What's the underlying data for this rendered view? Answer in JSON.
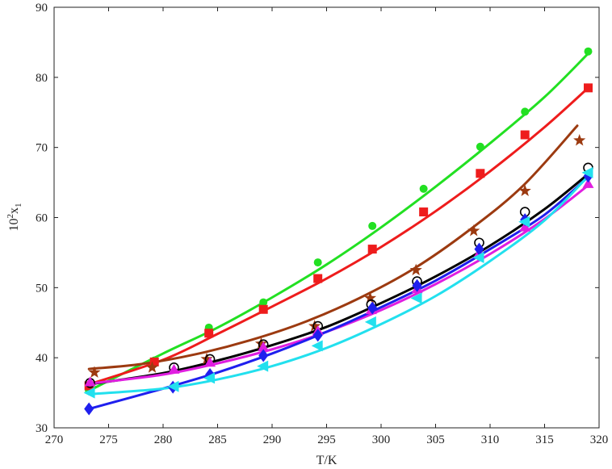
{
  "chart_data": {
    "type": "scatter",
    "xlabel": "T/K",
    "ylabel": {
      "base": "10",
      "sup": "2",
      "main": "x",
      "sub": "1"
    },
    "xlim": [
      270,
      320
    ],
    "ylim": [
      30,
      90
    ],
    "xticks": [
      270,
      275,
      280,
      285,
      290,
      295,
      300,
      305,
      310,
      315,
      320
    ],
    "yticks": [
      30,
      40,
      50,
      60,
      70,
      80,
      90
    ],
    "grid": false,
    "series": [
      {
        "color": "#22e022",
        "marker": "circle",
        "x": [
          273.2,
          279.2,
          284.2,
          289.2,
          294.2,
          299.2,
          303.9,
          309.1,
          313.2,
          319.0
        ],
        "y": [
          35.3,
          39.6,
          44.3,
          47.9,
          53.6,
          58.8,
          64.1,
          70.1,
          75.1,
          83.7
        ],
        "fit_x": [
          273.2,
          280,
          285,
          290,
          295,
          300,
          305,
          310,
          315,
          319.0
        ],
        "fit_y": [
          35.3,
          40.6,
          44.3,
          48.6,
          53.3,
          58.6,
          64.4,
          70.6,
          77.2,
          83.4
        ]
      },
      {
        "color": "#ee1c1c",
        "marker": "square",
        "x": [
          273.2,
          279.2,
          284.2,
          289.2,
          294.2,
          299.2,
          303.9,
          309.1,
          313.2,
          319.0
        ],
        "y": [
          36.0,
          39.4,
          43.5,
          46.9,
          51.3,
          55.5,
          60.8,
          66.3,
          71.8,
          78.5
        ],
        "fit_x": [
          273.2,
          280,
          285,
          290,
          295,
          300,
          305,
          310,
          315,
          319.0
        ],
        "fit_y": [
          36.2,
          39.7,
          43.4,
          47.3,
          51.3,
          55.8,
          60.9,
          66.6,
          72.9,
          78.5
        ]
      },
      {
        "color": "#9c3a10",
        "marker": "star",
        "x": [
          273.7,
          279.0,
          284.0,
          289.0,
          293.9,
          299.0,
          303.2,
          308.5,
          313.2,
          318.2
        ],
        "y": [
          37.9,
          38.6,
          39.8,
          42.0,
          44.5,
          48.5,
          52.5,
          58.1,
          63.8,
          71.0
        ],
        "fit_x": [
          273.2,
          278,
          283,
          288,
          293,
          298,
          303,
          308,
          313,
          318.0
        ],
        "fit_y": [
          38.4,
          39.1,
          40.5,
          42.5,
          45.1,
          48.5,
          52.7,
          58.1,
          64.5,
          73.1
        ]
      },
      {
        "color": "#000000",
        "marker": "circle-open",
        "x": [
          273.3,
          281.0,
          284.3,
          289.2,
          294.2,
          299.1,
          303.3,
          309.0,
          313.2,
          319.0
        ],
        "y": [
          36.4,
          38.6,
          39.8,
          41.9,
          44.5,
          47.6,
          50.9,
          56.4,
          60.8,
          67.1
        ],
        "fit_x": [
          273.2,
          280,
          285,
          290,
          295,
          300,
          305,
          310,
          315,
          319.0
        ],
        "fit_y": [
          36.2,
          37.8,
          39.6,
          41.8,
          44.4,
          47.8,
          51.6,
          56.0,
          61.2,
          66.2
        ]
      },
      {
        "color": "#e01ee0",
        "marker": "triangle-up",
        "x": [
          273.3,
          281.0,
          284.3,
          289.2,
          294.2,
          299.1,
          303.3,
          309.0,
          313.2,
          319.0
        ],
        "y": [
          36.5,
          38.3,
          39.3,
          41.5,
          43.8,
          46.8,
          49.8,
          54.9,
          58.6,
          64.8
        ],
        "fit_x": [
          273.2,
          280,
          285,
          290,
          295,
          300,
          305,
          310,
          315,
          319.0
        ],
        "fit_y": [
          36.3,
          37.6,
          39.2,
          41.2,
          43.7,
          46.8,
          50.5,
          54.8,
          59.8,
          64.6
        ]
      },
      {
        "color": "#1f1fee",
        "marker": "diamond",
        "x": [
          273.2,
          280.9,
          284.3,
          289.2,
          294.2,
          299.2,
          303.3,
          309.0,
          313.2,
          319.0
        ],
        "y": [
          32.7,
          35.8,
          37.6,
          40.3,
          43.2,
          47.1,
          50.3,
          55.5,
          59.7,
          65.9
        ],
        "fit_x": [
          273.2,
          280,
          285,
          290,
          295,
          300,
          305,
          310,
          315,
          319.0
        ],
        "fit_y": [
          32.7,
          35.6,
          37.9,
          40.6,
          43.7,
          47.2,
          51.0,
          55.5,
          60.4,
          65.8
        ]
      },
      {
        "color": "#22e0ee",
        "marker": "triangle-left",
        "x": [
          273.3,
          281.0,
          284.3,
          289.2,
          294.2,
          299.1,
          303.3,
          309.0,
          313.2,
          319.0
        ],
        "y": [
          35.0,
          35.9,
          37.1,
          38.8,
          41.7,
          45.1,
          48.5,
          54.3,
          59.4,
          66.4
        ],
        "fit_x": [
          273.2,
          280,
          285,
          290,
          295,
          300,
          305,
          310,
          315,
          319.0
        ],
        "fit_y": [
          34.8,
          35.6,
          36.9,
          38.8,
          41.4,
          44.8,
          48.8,
          53.8,
          59.6,
          65.9
        ]
      }
    ]
  }
}
